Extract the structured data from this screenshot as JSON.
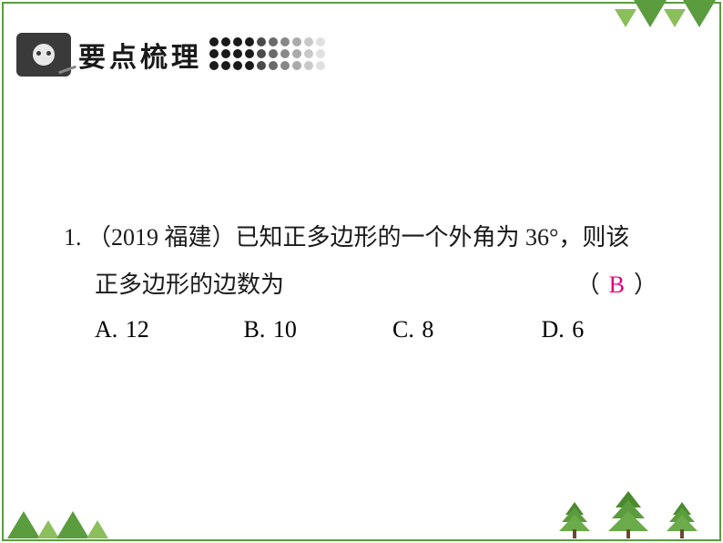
{
  "header": {
    "title": "要点梳理",
    "dot_colors": [
      "#1a1a1a",
      "#1a1a1a",
      "#1a1a1a",
      "#1a1a1a",
      "#4a4a4a",
      "#6a6a6a",
      "#888888",
      "#aaaaaa",
      "#c8c8c8",
      "#e0e0e0"
    ],
    "banner_fontsize": 30
  },
  "question": {
    "number": "1.",
    "source": "（2019 福建）",
    "stem_line1": "已知正多边形的一个外角为 36°，则该",
    "stem_line2": "正多边形的边数为",
    "paren_open": "（",
    "paren_close": "）",
    "answer": "B",
    "answer_color": "#e6007e",
    "options": [
      {
        "letter": "A.",
        "value": "12"
      },
      {
        "letter": "B.",
        "value": "10"
      },
      {
        "letter": "C.",
        "value": "8"
      },
      {
        "letter": "D.",
        "value": "6"
      }
    ],
    "fontsize": 26,
    "text_color": "#1a1a1a"
  },
  "decoration": {
    "border_color": "#5a9c3e",
    "triangle_dark": "#5a9c3e",
    "triangle_light": "#8abf5c"
  }
}
